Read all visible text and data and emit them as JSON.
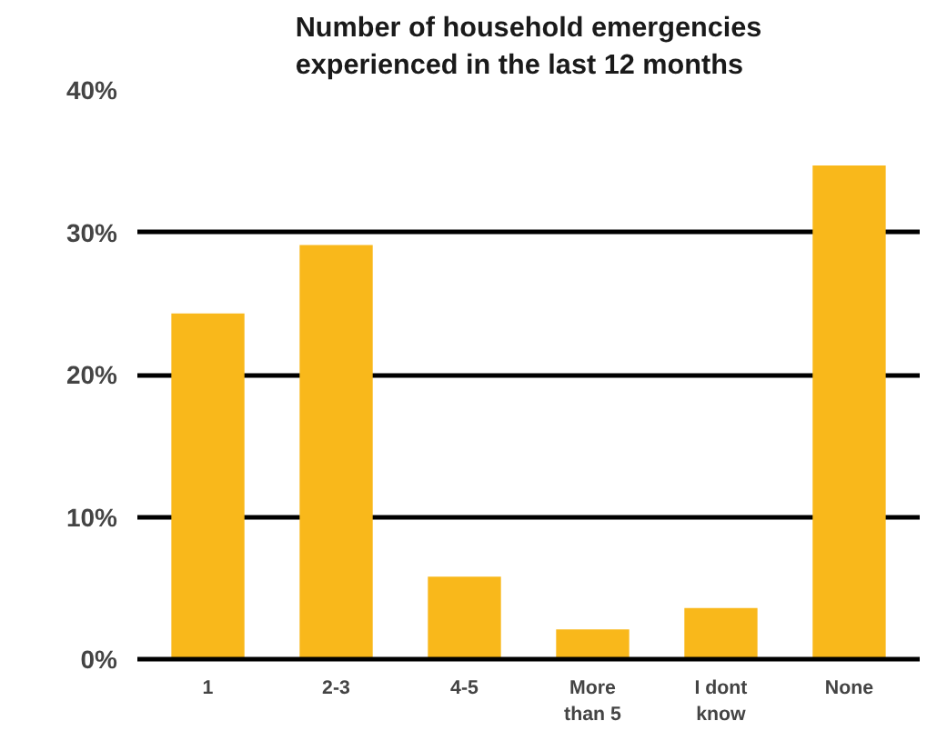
{
  "chart_data": {
    "type": "bar",
    "title": "Number of household emergencies\nexperienced in the last 12 months",
    "categories": [
      "1",
      "2-3",
      "4-5",
      "More\nthan 5",
      "I dont\nknow",
      "None"
    ],
    "values": [
      24.3,
      29.1,
      5.8,
      2.1,
      3.6,
      34.7
    ],
    "color": "#f9b81b",
    "ylim": [
      0,
      40
    ],
    "yticks": [
      {
        "value": 0,
        "label": "0%"
      },
      {
        "value": 10,
        "label": "10%"
      },
      {
        "value": 20,
        "label": "20%"
      },
      {
        "value": 30,
        "label": "30%"
      },
      {
        "value": 40,
        "label": "40%"
      }
    ],
    "grid": "y"
  }
}
